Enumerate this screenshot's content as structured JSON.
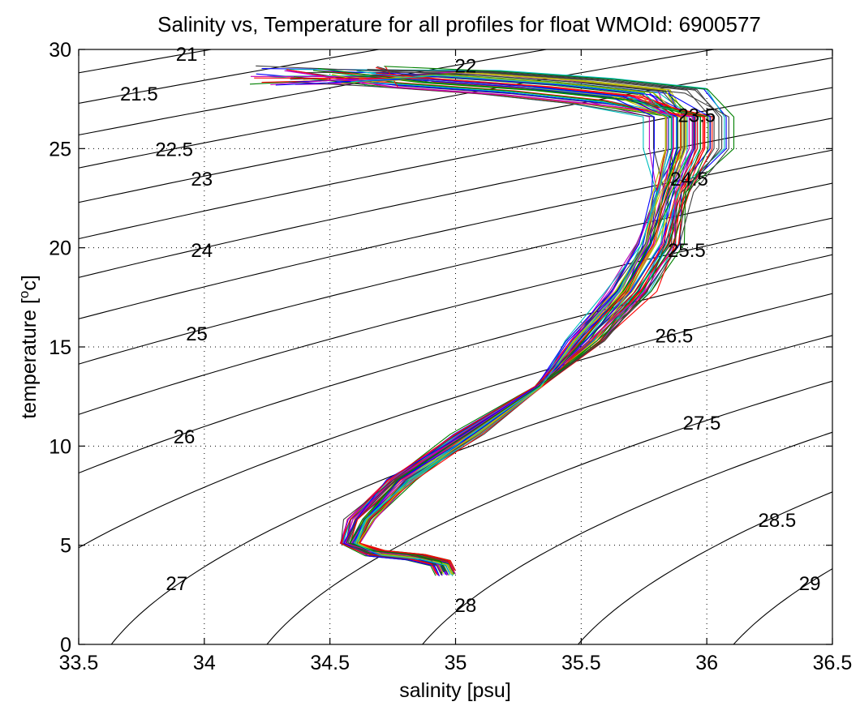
{
  "chart_data": {
    "type": "line",
    "title": "Salinity vs, Temperature for all profiles for float WMOId: 6900577",
    "xlabel": "salinity [psu]",
    "ylabel_main": "temperature [",
    "ylabel_sup": "o",
    "ylabel_end": "c]",
    "xlim": [
      33.5,
      36.5
    ],
    "ylim": [
      0,
      30
    ],
    "x_ticks": [
      33.5,
      34,
      34.5,
      35,
      35.5,
      36,
      36.5
    ],
    "x_tick_labels": [
      "33.5",
      "34",
      "34.5",
      "35",
      "35.5",
      "36",
      "36.5"
    ],
    "y_ticks": [
      0,
      5,
      10,
      15,
      20,
      25,
      30
    ],
    "y_tick_labels": [
      "0",
      "5",
      "10",
      "15",
      "20",
      "25",
      "30"
    ],
    "grid": true,
    "density_contours": {
      "levels": [
        21,
        21.5,
        22,
        22.5,
        23,
        23.5,
        24,
        24.5,
        25,
        25.5,
        26,
        26.5,
        27,
        27.5,
        28,
        28.5,
        29
      ],
      "labels": [
        {
          "text": "21",
          "s": 33.93,
          "t": 29.8
        },
        {
          "text": "21.5",
          "s": 33.74,
          "t": 27.8
        },
        {
          "text": "22",
          "s": 35.04,
          "t": 29.2
        },
        {
          "text": "22.5",
          "s": 33.88,
          "t": 25.0
        },
        {
          "text": "23",
          "s": 33.99,
          "t": 23.5
        },
        {
          "text": "23.5",
          "s": 35.96,
          "t": 26.7
        },
        {
          "text": "24",
          "s": 33.99,
          "t": 19.9
        },
        {
          "text": "24.5",
          "s": 35.93,
          "t": 23.5
        },
        {
          "text": "25",
          "s": 33.97,
          "t": 15.7
        },
        {
          "text": "25.5",
          "s": 35.92,
          "t": 19.9
        },
        {
          "text": "26",
          "s": 33.92,
          "t": 10.5
        },
        {
          "text": "26.5",
          "s": 35.87,
          "t": 15.6
        },
        {
          "text": "27",
          "s": 33.89,
          "t": 3.1
        },
        {
          "text": "27.5",
          "s": 35.98,
          "t": 11.2
        },
        {
          "text": "28",
          "s": 35.04,
          "t": 2.0
        },
        {
          "text": "28.5",
          "s": 36.28,
          "t": 6.3
        },
        {
          "text": "29",
          "s": 36.41,
          "t": 3.1
        }
      ]
    },
    "profiles": {
      "count": 60,
      "colors": [
        "#0000ff",
        "#008000",
        "#ff0000",
        "#00bfbf",
        "#bf00bf",
        "#bfbf00",
        "#3f3f3f"
      ],
      "mean_profile": [
        {
          "s": 34.96,
          "t": 3.6
        },
        {
          "s": 34.94,
          "t": 4.1
        },
        {
          "s": 34.84,
          "t": 4.4
        },
        {
          "s": 34.68,
          "t": 4.6
        },
        {
          "s": 34.58,
          "t": 5.1
        },
        {
          "s": 34.62,
          "t": 6.3
        },
        {
          "s": 34.78,
          "t": 8.3
        },
        {
          "s": 35.05,
          "t": 10.6
        },
        {
          "s": 35.33,
          "t": 13.0
        },
        {
          "s": 35.52,
          "t": 15.3
        },
        {
          "s": 35.7,
          "t": 17.8
        },
        {
          "s": 35.81,
          "t": 20.2
        },
        {
          "s": 35.86,
          "t": 22.8
        },
        {
          "s": 35.93,
          "t": 25.0
        },
        {
          "s": 35.93,
          "t": 26.6
        },
        {
          "s": 35.72,
          "t": 27.6
        },
        {
          "s": 35.35,
          "t": 28.1
        },
        {
          "s": 34.9,
          "t": 28.5
        },
        {
          "s": 34.45,
          "t": 28.7
        }
      ]
    }
  }
}
